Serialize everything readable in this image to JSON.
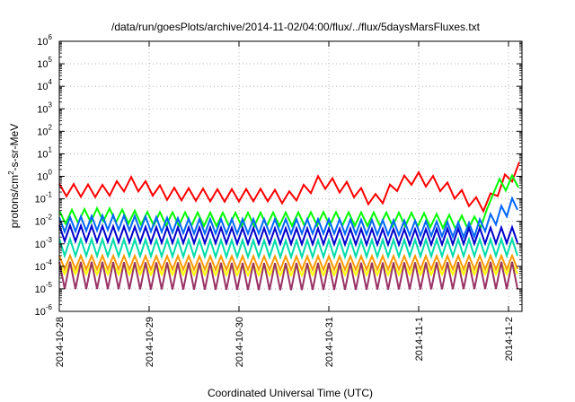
{
  "chart_data": {
    "type": "line",
    "title": "/data/run/goesPlots/archive/2014-11-02/04:00/flux/../flux/5daysMarsFluxes.txt",
    "xlabel": "Coordinated Universal Time (UTC)",
    "ylabel_parts": {
      "base": "protons/cm",
      "exp": "2",
      "rest": "-s-sr-MeV"
    },
    "yscale": "log",
    "ylim": [
      1e-06,
      1000000.0
    ],
    "y_ticks": [
      {
        "base": "10",
        "exp": "-6",
        "value": -6
      },
      {
        "base": "10",
        "exp": "-5",
        "value": -5
      },
      {
        "base": "10",
        "exp": "-4",
        "value": -4
      },
      {
        "base": "10",
        "exp": "-3",
        "value": -3
      },
      {
        "base": "10",
        "exp": "-2",
        "value": -2
      },
      {
        "base": "10",
        "exp": "-1",
        "value": -1
      },
      {
        "base": "10",
        "exp": "0",
        "value": 0
      },
      {
        "base": "10",
        "exp": "1",
        "value": 1
      },
      {
        "base": "10",
        "exp": "2",
        "value": 2
      },
      {
        "base": "10",
        "exp": "3",
        "value": 3
      },
      {
        "base": "10",
        "exp": "4",
        "value": 4
      },
      {
        "base": "10",
        "exp": "5",
        "value": 5
      },
      {
        "base": "10",
        "exp": "6",
        "value": 6
      }
    ],
    "xlim_days": [
      0,
      5.15
    ],
    "x_ticks": [
      {
        "label": "2014-10-28",
        "day": 0
      },
      {
        "label": "2014-10-29",
        "day": 1
      },
      {
        "label": "2014-10-30",
        "day": 2
      },
      {
        "label": "2014-10-31",
        "day": 3
      },
      {
        "label": "2014-11-1",
        "day": 4
      },
      {
        "label": "2014-11-2",
        "day": 5
      }
    ],
    "grid": true,
    "legend": "none",
    "series": [
      {
        "color": "#ff0000",
        "base": [
          [
            0,
            0.25
          ],
          [
            0.5,
            0.22
          ],
          [
            0.8,
            0.5
          ],
          [
            1.2,
            0.17
          ],
          [
            1.8,
            0.14
          ],
          [
            2.3,
            0.15
          ],
          [
            2.55,
            0.11
          ],
          [
            2.75,
            0.25
          ],
          [
            2.9,
            0.6
          ],
          [
            3.2,
            0.3
          ],
          [
            3.35,
            0.17
          ],
          [
            3.5,
            0.08
          ],
          [
            3.6,
            0.12
          ],
          [
            3.75,
            0.4
          ],
          [
            3.95,
            0.9
          ],
          [
            4.2,
            0.5
          ],
          [
            4.45,
            0.15
          ],
          [
            4.65,
            0.06
          ],
          [
            4.75,
            0.05
          ],
          [
            4.95,
            0.6
          ],
          [
            5.05,
            1.2
          ],
          [
            5.15,
            3.0
          ]
        ],
        "saw": 0.55,
        "period": 0.16,
        "start": 0.0,
        "end": 5.15
      },
      {
        "color": "#00ff00",
        "base": [
          [
            0,
            0.015
          ],
          [
            0.5,
            0.02
          ],
          [
            1.0,
            0.013
          ],
          [
            2.0,
            0.012
          ],
          [
            3.0,
            0.013
          ],
          [
            4.0,
            0.012
          ],
          [
            4.65,
            0.008
          ],
          [
            4.78,
            0.02
          ],
          [
            4.8,
            0.3
          ],
          [
            5.0,
            0.5
          ],
          [
            5.15,
            0.7
          ]
        ],
        "saw": 0.6,
        "period": 0.14,
        "start": 0.0,
        "end": 5.15
      },
      {
        "color": "#0066ff",
        "base": [
          [
            0,
            0.007
          ],
          [
            0.6,
            0.009
          ],
          [
            1.5,
            0.006
          ],
          [
            3.0,
            0.006
          ],
          [
            4.0,
            0.005
          ],
          [
            4.6,
            0.004
          ],
          [
            4.8,
            0.01
          ],
          [
            5.0,
            0.04
          ],
          [
            5.15,
            0.09
          ]
        ],
        "saw": 0.65,
        "period": 0.12,
        "start": 0.0,
        "end": 5.15
      },
      {
        "color": "#0000cc",
        "base": [
          [
            0,
            0.003
          ],
          [
            1.0,
            0.0025
          ],
          [
            2.5,
            0.0022
          ],
          [
            4.0,
            0.002
          ],
          [
            5.15,
            0.0025
          ]
        ],
        "saw": 0.7,
        "period": 0.12,
        "start": 0.0,
        "end": 5.15
      },
      {
        "color": "#00ddaa",
        "base": [
          [
            0,
            0.0007
          ],
          [
            2.5,
            0.0006
          ],
          [
            5.15,
            0.0007
          ]
        ],
        "saw": 0.75,
        "period": 0.12,
        "start": 0.0,
        "end": 5.15
      },
      {
        "color": "#ff9900",
        "base": [
          [
            0,
            0.00015
          ],
          [
            2.5,
            0.00014
          ],
          [
            5.15,
            0.00015
          ]
        ],
        "saw": 0.6,
        "period": 0.12,
        "start": 0.0,
        "end": 5.15
      },
      {
        "color": "#ffff00",
        "base": [
          [
            0,
            8e-05
          ],
          [
            2.5,
            7e-05
          ],
          [
            5.15,
            8e-05
          ]
        ],
        "saw": 0.5,
        "period": 0.12,
        "start": 0.0,
        "end": 5.15
      },
      {
        "color": "#993366",
        "base": [
          [
            0,
            4e-05
          ],
          [
            2.5,
            3.5e-05
          ],
          [
            5.15,
            4e-05
          ]
        ],
        "saw": 1.2,
        "period": 0.12,
        "start": 0.0,
        "end": 5.15
      }
    ]
  }
}
